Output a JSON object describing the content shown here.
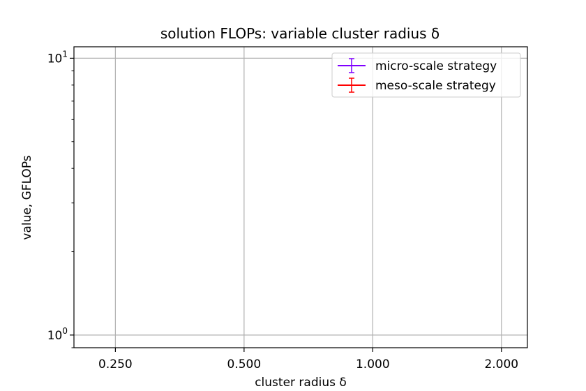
{
  "chart_data": {
    "type": "line",
    "title": "solution FLOPs: variable cluster radius δ",
    "xlabel": "cluster radius δ",
    "ylabel": "value, GFLOPs",
    "x_scale": "log2",
    "y_scale": "log10",
    "x_ticks": [
      {
        "value": 0.25,
        "label": "0.250"
      },
      {
        "value": 0.5,
        "label": "0.500"
      },
      {
        "value": 1.0,
        "label": "1.000"
      },
      {
        "value": 2.0,
        "label": "2.000"
      }
    ],
    "y_ticks": [
      {
        "value": 1,
        "base": "10",
        "exp": "0"
      },
      {
        "value": 10,
        "base": "10",
        "exp": "1"
      }
    ],
    "xlim": [
      0.2,
      2.3
    ],
    "ylim": [
      0.9,
      11
    ],
    "grid": true,
    "legend_position": "top-right",
    "series": [
      {
        "name": "micro-scale strategy",
        "color": "#7f00ff",
        "x": [],
        "y": []
      },
      {
        "name": "meso-scale strategy",
        "color": "#ff0000",
        "x": [],
        "y": []
      }
    ]
  }
}
